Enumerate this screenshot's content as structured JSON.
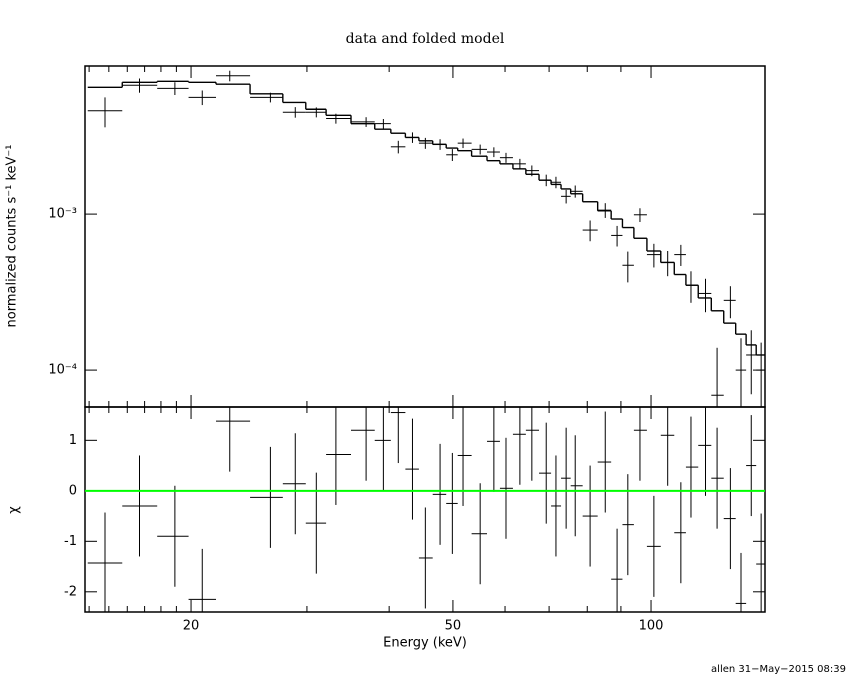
{
  "chart_data": [
    {
      "type": "spectrum",
      "title": "data and folded model",
      "ylabel": "normalized counts s⁻¹ keV⁻¹",
      "log_x": true,
      "log_y": true,
      "xlim": [
        13.8,
        149
      ],
      "ylim": [
        5.8e-05,
        0.0089
      ],
      "yticks": [
        {
          "value": 0.0001,
          "label": "10⁻⁴"
        },
        {
          "value": 0.001,
          "label": "10⁻³"
        }
      ],
      "xticks": [
        20,
        50,
        100
      ],
      "xminorticks": [
        14,
        15,
        16,
        17,
        18,
        19,
        30,
        40,
        60,
        70,
        80,
        90
      ],
      "color": "#000000",
      "x": [
        14.8,
        16.7,
        18.9,
        20.8,
        22.9,
        26.4,
        28.8,
        31.0,
        33.2,
        36.9,
        39.2,
        41.3,
        43.4,
        45.4,
        47.8,
        49.9,
        51.8,
        55.0,
        57.7,
        60.2,
        63.2,
        65.9,
        69.3,
        71.7,
        74.3,
        76.7,
        80.8,
        85.2,
        88.8,
        92.2,
        96.2,
        101,
        106,
        111,
        115,
        121,
        126,
        132,
        137,
        142,
        147
      ],
      "values": [
        0.0046,
        0.0067,
        0.0064,
        0.0056,
        0.0077,
        0.0056,
        0.0045,
        0.0045,
        0.0041,
        0.0039,
        0.0038,
        0.0027,
        0.0031,
        0.00285,
        0.0028,
        0.0024,
        0.00285,
        0.0026,
        0.0025,
        0.0023,
        0.0021,
        0.0019,
        0.00165,
        0.0016,
        0.0013,
        0.0014,
        0.00079,
        0.00106,
        0.00073,
        0.00047,
        0.00099,
        0.00055,
        0.00049,
        0.00055,
        0.00035,
        0.00031,
        6.9e-05,
        0.00028,
        0.0001,
        0.000125,
        0.0001
      ],
      "errors": [
        0.001,
        0.0007,
        0.0006,
        0.0006,
        0.0006,
        0.0004,
        0.00035,
        0.00033,
        0.0003,
        0.00028,
        0.00027,
        0.00025,
        0.00024,
        0.00023,
        0.00022,
        0.00021,
        0.0002,
        0.00019,
        0.00018,
        0.00017,
        0.00016,
        0.00015,
        0.00014,
        0.000135,
        0.00013,
        0.000125,
        0.00012,
        0.000115,
        0.00011,
        0.000105,
        0.0001,
        9.5e-05,
        9e-05,
        8.5e-05,
        8e-05,
        7.5e-05,
        7e-05,
        6.5e-05,
        6e-05,
        5.5e-05,
        5e-05
      ],
      "model": [
        0.0065,
        0.007,
        0.0071,
        0.007,
        0.0068,
        0.0059,
        0.0052,
        0.0047,
        0.0043,
        0.0038,
        0.0035,
        0.0033,
        0.0031,
        0.00295,
        0.0028,
        0.00265,
        0.00255,
        0.00235,
        0.0022,
        0.0021,
        0.00195,
        0.0018,
        0.00165,
        0.00155,
        0.00145,
        0.00135,
        0.0012,
        0.00105,
        0.00093,
        0.00082,
        0.0007,
        0.00058,
        0.00049,
        0.00041,
        0.00035,
        0.00029,
        0.00024,
        0.0002,
        0.00017,
        0.000145,
        0.000125
      ]
    },
    {
      "type": "residuals",
      "xlabel": "Energy (keV)",
      "ylabel": "χ",
      "log_x": true,
      "xlim": [
        13.8,
        149
      ],
      "ylim": [
        -2.4,
        1.66
      ],
      "yticks": [
        -2,
        -1,
        0,
        1
      ],
      "xticks": [
        20,
        50,
        100
      ],
      "xminorticks": [
        14,
        15,
        16,
        17,
        18,
        19,
        30,
        40,
        60,
        70,
        80,
        90
      ],
      "color": "#000000",
      "reference": 0,
      "reference_color": "#00ff00",
      "x": [
        14.8,
        16.7,
        18.9,
        20.8,
        22.9,
        26.4,
        28.8,
        31.0,
        33.2,
        36.9,
        39.2,
        41.3,
        43.4,
        45.4,
        47.8,
        49.9,
        51.8,
        55.0,
        57.7,
        60.2,
        63.2,
        65.9,
        69.3,
        71.7,
        74.3,
        76.7,
        80.8,
        85.2,
        88.8,
        92.2,
        96.2,
        101,
        106,
        111,
        115,
        121,
        126,
        132,
        137,
        142,
        147
      ],
      "values": [
        -1.43,
        -0.3,
        -0.9,
        -2.15,
        1.38,
        -0.13,
        0.14,
        -0.64,
        0.72,
        1.2,
        1.0,
        1.55,
        0.43,
        -1.33,
        -0.07,
        -0.25,
        0.7,
        -0.85,
        0.98,
        0.05,
        1.12,
        1.2,
        0.35,
        -0.3,
        0.25,
        0.1,
        -0.5,
        0.57,
        -1.75,
        -0.67,
        1.2,
        -1.1,
        1.1,
        -0.83,
        0.47,
        0.9,
        0.25,
        -0.55,
        -2.23,
        0.5,
        -1.45
      ],
      "errors": [
        1,
        1,
        1,
        1,
        1,
        1,
        1,
        1,
        1,
        1,
        1,
        1,
        1,
        1,
        1,
        1,
        1,
        1,
        1,
        1,
        1,
        1,
        1,
        1,
        1,
        1,
        1,
        1,
        1,
        1,
        1,
        1,
        1,
        1,
        1,
        1,
        1,
        1,
        1,
        1,
        1
      ]
    }
  ],
  "footer": "allen 31−May−2015 08:39"
}
